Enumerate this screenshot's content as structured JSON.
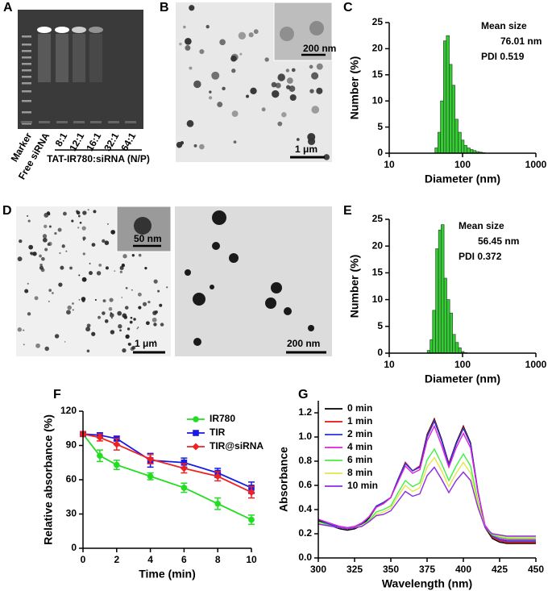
{
  "panels": {
    "a": {
      "label": "A",
      "lanes": [
        "Marker",
        "Free siRNA",
        "8:1",
        "12:1",
        "16:1",
        "32:1",
        "64:1"
      ],
      "group": "TAT-IR780:siRNA (N/P)"
    },
    "b": {
      "label": "B",
      "inset_scale": "200 nm",
      "scale": "1 μm"
    },
    "d": {
      "label": "D",
      "inset_scale": "50 nm",
      "scale": "1 μm",
      "scale_right": "200 nm"
    }
  },
  "chart_data": [
    {
      "type": "histogram",
      "label": "C",
      "x_label": "Diameter (nm)",
      "y_label": "Number (%)",
      "annotations": [
        "Mean size",
        "76.01 nm",
        "PDI 0.519"
      ],
      "bins": [
        42,
        46,
        50,
        55,
        60,
        66,
        72,
        79,
        87,
        96,
        105,
        115,
        127,
        139,
        153,
        168,
        185,
        203
      ],
      "values": [
        1,
        4,
        10,
        21.5,
        22.5,
        17,
        13,
        6.5,
        4,
        2.5,
        1.5,
        1,
        0.7,
        0.5,
        0.3,
        0.2,
        0.1
      ],
      "color": "#33cc33",
      "log_x": true,
      "xlim": [
        10,
        1000
      ],
      "xticks": [
        10,
        100,
        1000
      ],
      "ylim": [
        0,
        25
      ],
      "yticks": [
        0,
        5,
        10,
        15,
        20,
        25
      ]
    },
    {
      "type": "histogram",
      "label": "E",
      "x_label": "Diameter (nm)",
      "y_label": "Number (%)",
      "annotations": [
        "Mean size",
        "56.45 nm",
        "PDI  0.372"
      ],
      "bins": [
        33,
        36,
        39,
        43,
        47,
        51,
        56,
        61,
        67,
        73,
        80,
        88,
        96,
        105,
        115
      ],
      "values": [
        0.5,
        2.5,
        8,
        19.5,
        23,
        24,
        14,
        10,
        7.5,
        3.5,
        2,
        1,
        0.3,
        0.1
      ],
      "color": "#33cc33",
      "log_x": true,
      "xlim": [
        10,
        1000
      ],
      "xticks": [
        10,
        100,
        1000
      ],
      "ylim": [
        0,
        25
      ],
      "yticks": [
        0,
        5,
        10,
        15,
        20,
        25
      ]
    },
    {
      "type": "line",
      "label": "F",
      "x_label": "Time (min)",
      "y_label": "Relative absorbance (%)",
      "x": [
        0,
        1,
        2,
        4,
        6,
        8,
        10
      ],
      "series": [
        {
          "name": "IR780",
          "color": "#22dd22",
          "marker": "circle",
          "values": [
            100,
            81,
            73,
            63,
            53,
            39,
            25
          ],
          "errors": [
            2,
            5,
            4,
            3,
            4,
            5,
            4
          ]
        },
        {
          "name": "TIR",
          "color": "#1a1ae6",
          "marker": "square",
          "values": [
            100,
            99,
            96,
            77,
            75,
            66,
            53
          ],
          "errors": [
            2,
            2,
            2,
            6,
            4,
            4,
            5
          ]
        },
        {
          "name": "TIR@siRNA",
          "color": "#ee2222",
          "marker": "diamond",
          "values": [
            100,
            97,
            91,
            78,
            70,
            63,
            49
          ],
          "errors": [
            2,
            3,
            5,
            4,
            4,
            4,
            5
          ]
        }
      ],
      "legend": "upper right",
      "xlim": [
        0,
        10
      ],
      "xticks": [
        0,
        2,
        4,
        6,
        8,
        10
      ],
      "ylim": [
        0,
        120
      ],
      "yticks": [
        0,
        30,
        60,
        90,
        120
      ]
    },
    {
      "type": "line",
      "label": "G",
      "x_label": "Wavelength (nm)",
      "y_label": "Absorbance",
      "x": [
        300,
        305,
        310,
        315,
        320,
        325,
        330,
        335,
        340,
        345,
        350,
        355,
        360,
        365,
        370,
        375,
        380,
        385,
        390,
        395,
        400,
        405,
        410,
        415,
        420,
        425,
        430,
        435,
        440,
        445,
        450
      ],
      "series": [
        {
          "name": "0 min",
          "color": "#000000",
          "values": [
            0.31,
            0.28,
            0.26,
            0.24,
            0.23,
            0.24,
            0.27,
            0.33,
            0.42,
            0.45,
            0.5,
            0.65,
            0.79,
            0.72,
            0.76,
            1.02,
            1.15,
            0.98,
            0.78,
            0.95,
            1.09,
            0.95,
            0.55,
            0.25,
            0.16,
            0.13,
            0.12,
            0.12,
            0.12,
            0.12,
            0.12
          ]
        },
        {
          "name": "1 min",
          "color": "#ee1111",
          "values": [
            0.32,
            0.29,
            0.27,
            0.25,
            0.24,
            0.25,
            0.28,
            0.34,
            0.42,
            0.45,
            0.5,
            0.65,
            0.79,
            0.72,
            0.76,
            1.01,
            1.14,
            0.97,
            0.78,
            0.94,
            1.08,
            0.94,
            0.55,
            0.26,
            0.17,
            0.14,
            0.13,
            0.13,
            0.13,
            0.13,
            0.13
          ]
        },
        {
          "name": "2 min",
          "color": "#2233dd",
          "values": [
            0.32,
            0.29,
            0.27,
            0.26,
            0.25,
            0.26,
            0.28,
            0.34,
            0.43,
            0.46,
            0.5,
            0.65,
            0.78,
            0.72,
            0.75,
            1.0,
            1.13,
            0.97,
            0.77,
            0.94,
            1.07,
            0.94,
            0.55,
            0.26,
            0.18,
            0.15,
            0.14,
            0.14,
            0.14,
            0.14,
            0.14
          ]
        },
        {
          "name": "4 min",
          "color": "#dd22dd",
          "values": [
            0.32,
            0.3,
            0.28,
            0.26,
            0.25,
            0.26,
            0.29,
            0.34,
            0.42,
            0.45,
            0.5,
            0.63,
            0.76,
            0.7,
            0.73,
            0.97,
            1.09,
            0.93,
            0.75,
            0.91,
            1.03,
            0.91,
            0.54,
            0.27,
            0.19,
            0.16,
            0.15,
            0.15,
            0.15,
            0.15,
            0.15
          ]
        },
        {
          "name": "6 min",
          "color": "#44ee44",
          "values": [
            0.3,
            0.28,
            0.26,
            0.25,
            0.24,
            0.25,
            0.27,
            0.31,
            0.38,
            0.4,
            0.43,
            0.54,
            0.64,
            0.59,
            0.62,
            0.81,
            0.9,
            0.78,
            0.64,
            0.76,
            0.86,
            0.76,
            0.47,
            0.25,
            0.19,
            0.17,
            0.16,
            0.16,
            0.16,
            0.16,
            0.16
          ]
        },
        {
          "name": "8 min",
          "color": "#e6e64a",
          "values": [
            0.29,
            0.27,
            0.26,
            0.25,
            0.24,
            0.25,
            0.27,
            0.3,
            0.36,
            0.38,
            0.41,
            0.51,
            0.6,
            0.55,
            0.58,
            0.75,
            0.83,
            0.72,
            0.59,
            0.7,
            0.79,
            0.7,
            0.45,
            0.25,
            0.2,
            0.18,
            0.17,
            0.17,
            0.17,
            0.17,
            0.17
          ]
        },
        {
          "name": "10 min",
          "color": "#8a2be2",
          "values": [
            0.28,
            0.27,
            0.26,
            0.25,
            0.24,
            0.25,
            0.26,
            0.3,
            0.35,
            0.36,
            0.39,
            0.47,
            0.55,
            0.51,
            0.53,
            0.68,
            0.75,
            0.65,
            0.54,
            0.64,
            0.71,
            0.64,
            0.42,
            0.25,
            0.2,
            0.19,
            0.18,
            0.18,
            0.18,
            0.18,
            0.18
          ]
        }
      ],
      "legend": "upper left",
      "xlim": [
        300,
        450
      ],
      "xticks": [
        300,
        325,
        350,
        375,
        400,
        425,
        450
      ],
      "ylim": [
        0,
        1.3
      ],
      "yticks": [
        {
          "value": 0,
          "label": "0.0"
        },
        0.2,
        0.4,
        0.6,
        0.8,
        {
          "value": 1,
          "label": "1.0"
        },
        1.2
      ]
    }
  ]
}
